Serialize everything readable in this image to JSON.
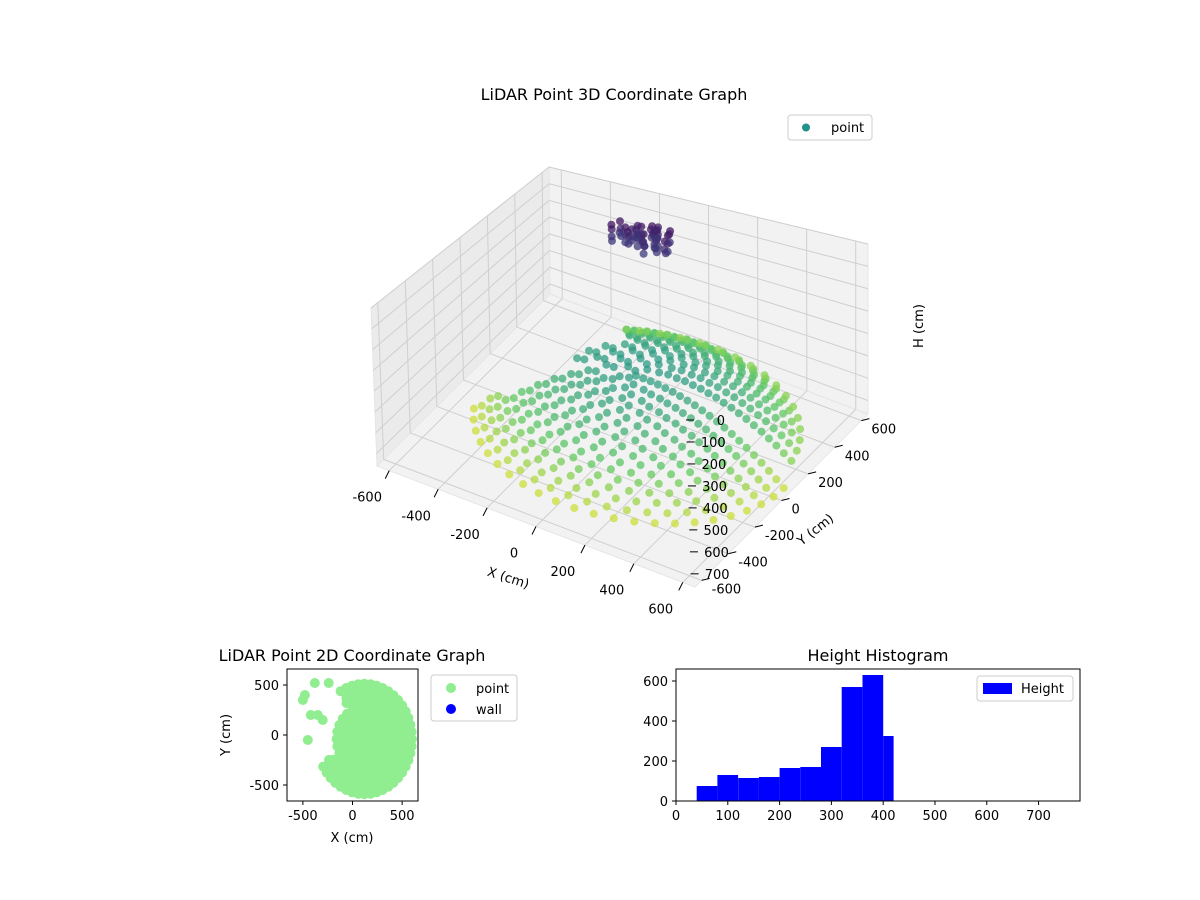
{
  "chart_data": [
    {
      "type": "scatter",
      "projection": "3d",
      "title": "LiDAR Point 3D Coordinate Graph",
      "xlabel": "X (cm)",
      "ylabel": "Y (cm)",
      "zlabel": "H (cm)",
      "xlim": [
        -650,
        650
      ],
      "ylim": [
        -650,
        650
      ],
      "zlim": [
        760,
        0
      ],
      "z_inverted": true,
      "x_ticks": [
        "-600",
        "-400",
        "-200",
        "0",
        "200",
        "400",
        "600"
      ],
      "y_ticks": [
        "-600",
        "-400",
        "-200",
        "0",
        "200",
        "400",
        "600"
      ],
      "z_ticks": [
        "0",
        "100",
        "200",
        "300",
        "400",
        "500",
        "600",
        "700"
      ],
      "colormap": "viridis",
      "legend": {
        "entries": [
          {
            "label": "point",
            "color": "#21918c"
          }
        ],
        "placement": "upper-right"
      },
      "grid": true,
      "series": [
        {
          "name": "point",
          "shape": "partial-dome",
          "rim_radius": 600,
          "rim_height": 700,
          "center_height": 420,
          "gap_angle_range_deg": [
            120,
            200
          ],
          "cluster": {
            "x": -150,
            "y": 450,
            "h": 50
          }
        }
      ]
    },
    {
      "type": "scatter",
      "title": "LiDAR Point 2D Coordinate Graph",
      "xlabel": "X (cm)",
      "ylabel": "Y (cm)",
      "xlim": [
        -660,
        660
      ],
      "ylim": [
        -660,
        660
      ],
      "x_ticks": [
        "-500",
        "0",
        "500"
      ],
      "y_ticks": [
        "-500",
        "0",
        "500"
      ],
      "legend": {
        "entries": [
          {
            "label": "point",
            "color": "#90ee90"
          },
          {
            "label": "wall",
            "color": "#0000ff"
          }
        ],
        "placement": "outside-right"
      },
      "series": [
        {
          "name": "point",
          "color": "#90ee90",
          "shape": "filled-disc",
          "center": [
            120,
            -40
          ],
          "radius": 500
        },
        {
          "name": "wall",
          "color": "#0000ff",
          "points": []
        }
      ]
    },
    {
      "type": "bar",
      "title": "Height Histogram",
      "xlabel": "",
      "ylabel": "",
      "xlim": [
        0,
        780
      ],
      "ylim": [
        0,
        660
      ],
      "x_ticks": [
        "0",
        "100",
        "200",
        "300",
        "400",
        "500",
        "600",
        "700"
      ],
      "y_ticks": [
        "0",
        "200",
        "400",
        "600"
      ],
      "legend": {
        "entries": [
          {
            "label": "Height",
            "color": "#0000ff"
          }
        ],
        "placement": "upper-right"
      },
      "color": "#0000ff",
      "bin_edges": [
        40,
        80,
        120,
        160,
        200,
        240,
        280,
        320,
        360,
        400,
        420
      ],
      "series": [
        {
          "name": "Height",
          "values": [
            75,
            130,
            115,
            120,
            165,
            170,
            270,
            570,
            630,
            325
          ]
        }
      ]
    }
  ]
}
